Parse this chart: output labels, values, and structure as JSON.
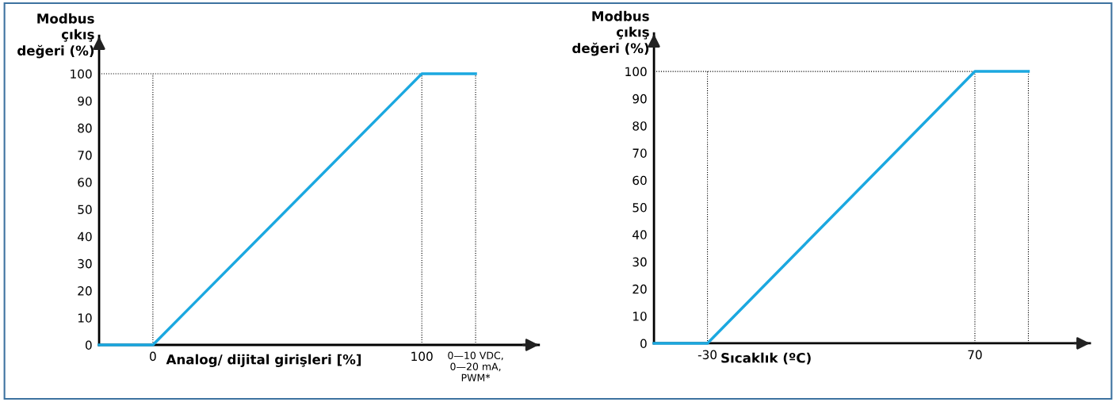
{
  "chart_data": [
    {
      "type": "line",
      "ylabel": "Modbus\nçıkış\ndeğeri (%)",
      "xlabel": "Analog/ dijital girişleri [%]",
      "x": [
        -20,
        0,
        100,
        120
      ],
      "series": [
        {
          "color": "#1ba8e0",
          "values": [
            0,
            0,
            100,
            100
          ]
        }
      ],
      "xlim": [
        -20,
        143.5
      ],
      "xticks": [
        0,
        100,
        {
          "value": 120,
          "label": "0—10 VDC,\n0—20 mA,\nPWM*"
        }
      ],
      "ylim": [
        0,
        114
      ],
      "yticks": [
        0,
        10,
        20,
        30,
        40,
        50,
        60,
        70,
        80,
        90,
        100
      ],
      "ref_lines": [
        {
          "axis": "y",
          "value": 100,
          "color": "#000000",
          "line_style": "dotted"
        },
        {
          "axis": "x",
          "value": 0,
          "color": "#000000",
          "line_style": "dotted"
        },
        {
          "axis": "x",
          "value": 100,
          "color": "#000000",
          "line_style": "dotted"
        },
        {
          "axis": "x",
          "value": 120,
          "color": "#000000",
          "line_style": "dotted"
        }
      ],
      "grid": false,
      "legend": false,
      "marker": "none",
      "line_style": "solid"
    },
    {
      "type": "line",
      "ylabel": "Modbus\nçıkış\ndeğeri (%)",
      "xlabel": "Sıcaklık (ºC)",
      "x": [
        -50,
        -30,
        70,
        90
      ],
      "series": [
        {
          "color": "#1ba8e0",
          "values": [
            0,
            0,
            100,
            100
          ]
        }
      ],
      "xlim": [
        -50,
        113
      ],
      "xticks": [
        -30,
        70
      ],
      "ylim": [
        0,
        114
      ],
      "yticks": [
        0,
        10,
        20,
        30,
        40,
        50,
        60,
        70,
        80,
        90,
        100
      ],
      "ref_lines": [
        {
          "axis": "y",
          "value": 100,
          "color": "#000000",
          "line_style": "dotted"
        },
        {
          "axis": "x",
          "value": -30,
          "color": "#000000",
          "line_style": "dotted"
        },
        {
          "axis": "x",
          "value": 70,
          "color": "#000000",
          "line_style": "dotted"
        },
        {
          "axis": "x",
          "value": 90,
          "color": "#000000",
          "line_style": "dotted"
        }
      ],
      "grid": false,
      "legend": false,
      "marker": "none",
      "line_style": "solid"
    }
  ]
}
